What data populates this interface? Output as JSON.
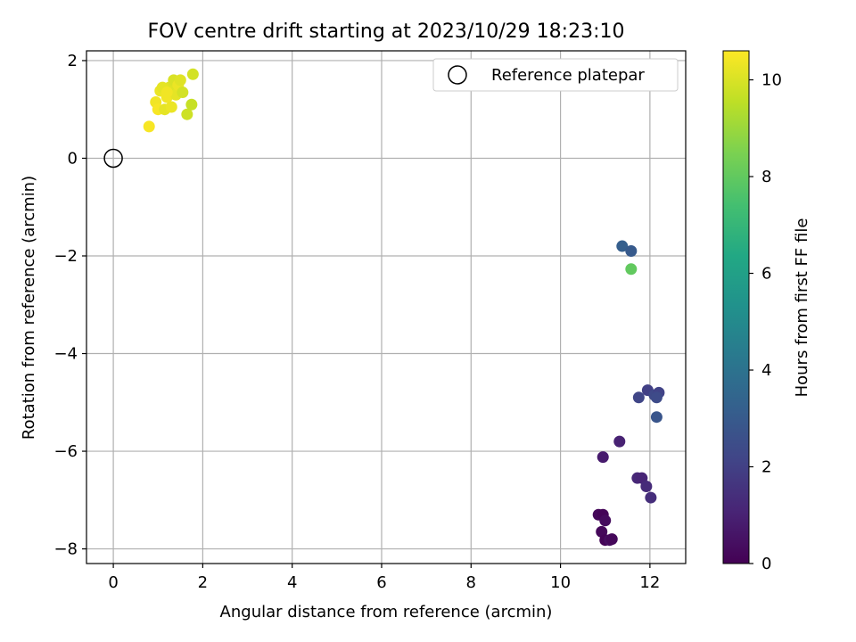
{
  "chart_data": {
    "type": "scatter",
    "title": "FOV centre drift starting at 2023/10/29 18:23:10",
    "xlabel": "Angular distance from reference (arcmin)",
    "ylabel": "Rotation from reference (arcmin)",
    "xlim": [
      -0.6,
      12.8
    ],
    "ylim": [
      -8.3,
      2.2
    ],
    "x_ticks": [
      0,
      2,
      4,
      6,
      8,
      10,
      12
    ],
    "y_ticks": [
      -8,
      -6,
      -4,
      -2,
      0,
      2
    ],
    "grid": true,
    "legend": {
      "placement": "top-right",
      "entries": [
        "Reference platepar"
      ]
    },
    "reference_point": {
      "x": 0,
      "y": 0,
      "label": "Reference platepar"
    },
    "colorbar": {
      "label": "Hours from first FF file",
      "range": [
        0,
        10.6
      ],
      "ticks": [
        0,
        2,
        4,
        6,
        8,
        10
      ],
      "colormap": "viridis"
    },
    "points": [
      {
        "x": 0.8,
        "y": 0.65,
        "c": 10.5
      },
      {
        "x": 0.95,
        "y": 1.15,
        "c": 10.4
      },
      {
        "x": 1.0,
        "y": 1.0,
        "c": 10.5
      },
      {
        "x": 1.05,
        "y": 1.38,
        "c": 10.3
      },
      {
        "x": 1.15,
        "y": 1.0,
        "c": 10.2
      },
      {
        "x": 1.2,
        "y": 1.25,
        "c": 10.4
      },
      {
        "x": 1.25,
        "y": 1.45,
        "c": 10.1
      },
      {
        "x": 1.3,
        "y": 1.05,
        "c": 10.3
      },
      {
        "x": 1.35,
        "y": 1.6,
        "c": 10.0
      },
      {
        "x": 1.4,
        "y": 1.3,
        "c": 10.2
      },
      {
        "x": 1.45,
        "y": 1.5,
        "c": 10.3
      },
      {
        "x": 1.5,
        "y": 1.6,
        "c": 10.1
      },
      {
        "x": 1.55,
        "y": 1.35,
        "c": 9.9
      },
      {
        "x": 1.65,
        "y": 0.9,
        "c": 9.8
      },
      {
        "x": 1.75,
        "y": 1.1,
        "c": 9.7
      },
      {
        "x": 1.78,
        "y": 1.72,
        "c": 9.9
      },
      {
        "x": 1.1,
        "y": 1.45,
        "c": 10.2
      },
      {
        "x": 1.2,
        "y": 1.35,
        "c": 10.4
      },
      {
        "x": 11.38,
        "y": -1.8,
        "c": 3.2
      },
      {
        "x": 11.58,
        "y": -1.9,
        "c": 3.0
      },
      {
        "x": 11.58,
        "y": -2.27,
        "c": 8.0
      },
      {
        "x": 11.95,
        "y": -4.75,
        "c": 2.0
      },
      {
        "x": 11.75,
        "y": -4.9,
        "c": 2.2
      },
      {
        "x": 12.1,
        "y": -4.85,
        "c": 2.3
      },
      {
        "x": 12.2,
        "y": -4.8,
        "c": 2.1
      },
      {
        "x": 12.15,
        "y": -4.9,
        "c": 2.4
      },
      {
        "x": 12.15,
        "y": -5.3,
        "c": 2.8
      },
      {
        "x": 11.32,
        "y": -5.8,
        "c": 1.0
      },
      {
        "x": 10.95,
        "y": -6.12,
        "c": 0.8
      },
      {
        "x": 11.72,
        "y": -6.55,
        "c": 1.2
      },
      {
        "x": 11.82,
        "y": -6.55,
        "c": 1.1
      },
      {
        "x": 11.92,
        "y": -6.72,
        "c": 1.3
      },
      {
        "x": 12.02,
        "y": -6.95,
        "c": 1.4
      },
      {
        "x": 10.85,
        "y": -7.3,
        "c": 0.2
      },
      {
        "x": 10.95,
        "y": -7.3,
        "c": 0.1
      },
      {
        "x": 11.0,
        "y": -7.42,
        "c": 0.3
      },
      {
        "x": 10.92,
        "y": -7.65,
        "c": 0.2
      },
      {
        "x": 11.0,
        "y": -7.82,
        "c": 0.1
      },
      {
        "x": 11.1,
        "y": -7.82,
        "c": 0.4
      },
      {
        "x": 11.15,
        "y": -7.8,
        "c": 0.2
      }
    ]
  }
}
